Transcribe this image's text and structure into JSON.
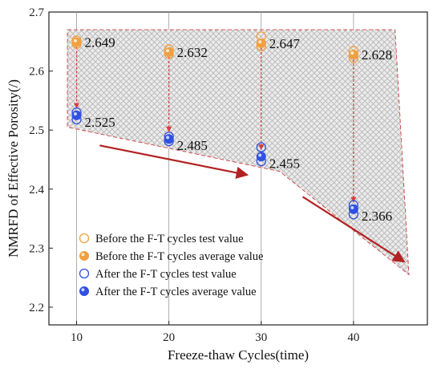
{
  "chart_data": {
    "type": "scatter",
    "xlabel": "Freeze-thaw Cycles(time)",
    "ylabel": "NMRFD of Effective Porosity(/)",
    "xlim": [
      7,
      48
    ],
    "ylim": [
      2.17,
      2.7
    ],
    "x_ticks": [
      10,
      20,
      30,
      40
    ],
    "y_ticks": [
      2.2,
      2.3,
      2.4,
      2.5,
      2.6,
      2.7
    ],
    "y_tick_labels": [
      "2.2",
      "2.3",
      "2.4",
      "2.5",
      "2.6",
      "2.7"
    ],
    "grid": "vertical",
    "legend_position": "bottom-left",
    "series": [
      {
        "name": "Before the F-T cycles test value",
        "marker": "open-circle",
        "color": "#F0A040",
        "x": [
          10,
          10,
          20,
          20,
          30,
          30,
          40,
          40
        ],
        "y": [
          2.652,
          2.646,
          2.637,
          2.629,
          2.659,
          2.642,
          2.634,
          2.622
        ]
      },
      {
        "name": "Before the F-T cycles average value",
        "marker": "filled-circle",
        "color": "#F0A040",
        "x": [
          10,
          20,
          30,
          40
        ],
        "y": [
          2.649,
          2.632,
          2.647,
          2.628
        ]
      },
      {
        "name": "After the F-T cycles test value",
        "marker": "open-circle",
        "color": "#3050E0",
        "x": [
          10,
          10,
          20,
          20,
          30,
          30,
          40,
          40
        ],
        "y": [
          2.53,
          2.518,
          2.489,
          2.481,
          2.471,
          2.447,
          2.373,
          2.357
        ]
      },
      {
        "name": "After the F-T cycles average value",
        "marker": "filled-circle",
        "color": "#3050E0",
        "x": [
          10,
          20,
          30,
          40
        ],
        "y": [
          2.525,
          2.485,
          2.455,
          2.366
        ]
      }
    ],
    "annotations": {
      "before_labels": [
        "2.649",
        "2.632",
        "2.647",
        "2.628"
      ],
      "after_labels": [
        "2.525",
        "2.485",
        "2.455",
        "2.366"
      ]
    },
    "shaded_region": {
      "color": "#D04040",
      "top": [
        [
          9,
          2.67
        ],
        [
          44.5,
          2.67
        ]
      ],
      "bottom": [
        [
          9,
          2.505
        ],
        [
          32,
          2.43
        ],
        [
          46,
          2.255
        ]
      ]
    },
    "trend_arrows": [
      {
        "from": [
          12.5,
          2.474
        ],
        "to": [
          28.5,
          2.424
        ]
      },
      {
        "from": [
          34.5,
          2.387
        ],
        "to": [
          45.5,
          2.277
        ]
      }
    ],
    "colors": {
      "before": "#F0A040",
      "after": "#3050E0",
      "arrow": "#B22222",
      "hatch": "#B0B0B0"
    }
  }
}
